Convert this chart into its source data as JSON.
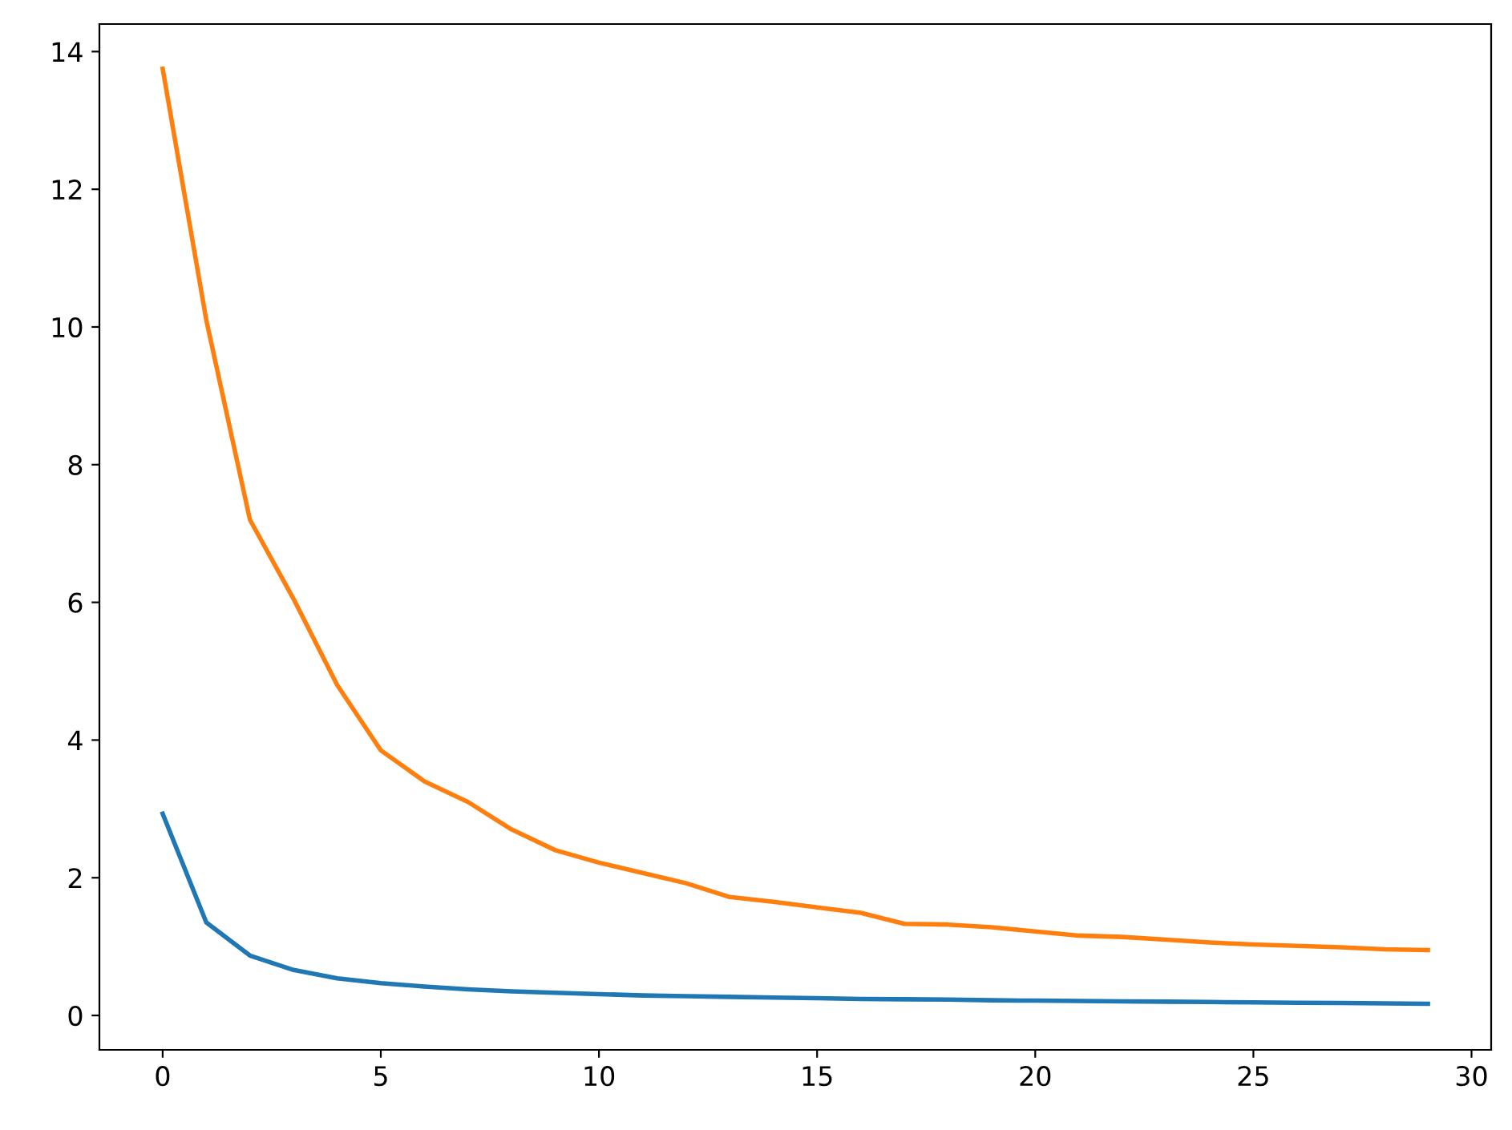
{
  "chart_data": {
    "type": "line",
    "x": [
      0,
      1,
      2,
      3,
      4,
      5,
      6,
      7,
      8,
      9,
      10,
      11,
      12,
      13,
      14,
      15,
      16,
      17,
      18,
      19,
      20,
      21,
      22,
      23,
      24,
      25,
      26,
      27,
      28,
      29
    ],
    "series": [
      {
        "color": "#1f77b4",
        "values": [
          2.93,
          1.35,
          0.87,
          0.66,
          0.54,
          0.47,
          0.42,
          0.38,
          0.35,
          0.33,
          0.31,
          0.29,
          0.28,
          0.27,
          0.26,
          0.25,
          0.24,
          0.235,
          0.23,
          0.22,
          0.215,
          0.21,
          0.205,
          0.2,
          0.195,
          0.19,
          0.185,
          0.18,
          0.175,
          0.17
        ]
      },
      {
        "color": "#ff7f0e",
        "values": [
          13.75,
          10.1,
          7.2,
          6.05,
          4.8,
          3.85,
          3.4,
          3.1,
          2.7,
          2.4,
          2.22,
          2.07,
          1.92,
          1.72,
          1.65,
          1.57,
          1.49,
          1.33,
          1.32,
          1.28,
          1.22,
          1.16,
          1.14,
          1.1,
          1.06,
          1.03,
          1.01,
          0.99,
          0.96,
          0.95
        ]
      }
    ],
    "xlim": [
      -1.45,
      30.45
    ],
    "ylim": [
      -0.5,
      14.4
    ],
    "xticks": [
      0,
      5,
      10,
      15,
      20,
      25,
      30
    ],
    "yticks": [
      0,
      2,
      4,
      6,
      8,
      10,
      12,
      14
    ],
    "grid": false,
    "legend": false,
    "marker": "none",
    "line_style": "solid"
  }
}
